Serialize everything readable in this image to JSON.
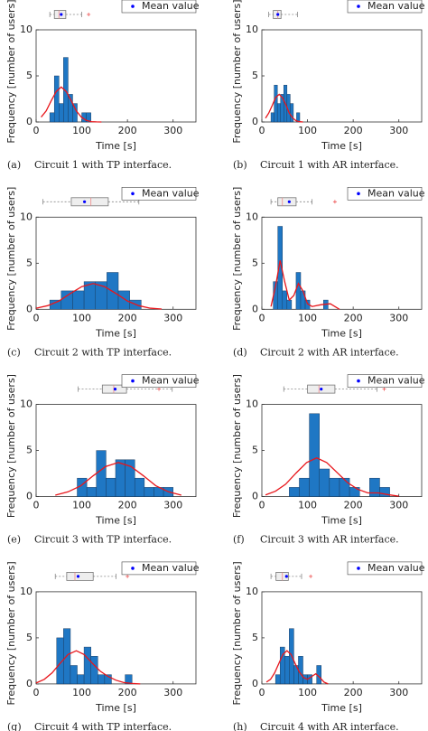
{
  "chart_data": [
    {
      "type": "histogram",
      "bins": [
        30,
        40,
        50,
        60,
        70,
        80,
        90,
        100,
        110,
        120
      ],
      "values": [
        1,
        5,
        2,
        7,
        3,
        2,
        0,
        1,
        1
      ],
      "color": "#1f77c4",
      "edgecolor": "#1a3f66",
      "fit": {
        "color": "#e8161b",
        "x": [
          11,
          22,
          33,
          44,
          55,
          66,
          77,
          88,
          99,
          110,
          121,
          132,
          143
        ],
        "y": [
          0.53,
          1.2,
          2.3,
          3.3,
          3.8,
          3.3,
          2.3,
          1.2,
          0.53,
          0.17,
          0.04,
          0.01,
          0
        ]
      },
      "boxplot": {
        "min": 30,
        "q1": 40,
        "median": 50,
        "q3": 65,
        "max": 100,
        "mean": 55,
        "outliers": [
          115
        ]
      },
      "legend": {
        "label": "Mean value",
        "corner": "upper right",
        "marker_color": "#0000ff"
      },
      "xlabel": "Time [s]",
      "ylabel": "Frequency [number of users]",
      "xlim": [
        0,
        350
      ],
      "ylim": [
        0,
        10
      ],
      "xticks": [
        0,
        100,
        200,
        300
      ],
      "yticks": [
        0,
        5,
        10
      ],
      "caption_label": "(a)",
      "caption": "Circuit 1 with TP interface."
    },
    {
      "type": "histogram",
      "bins": [
        20,
        27,
        34,
        41,
        48,
        55,
        62,
        69,
        76,
        83
      ],
      "values": [
        1,
        4,
        2,
        3,
        4,
        3,
        2,
        0,
        1
      ],
      "color": "#1f77c4",
      "edgecolor": "#1a3f66",
      "fit": {
        "color": "#e8161b",
        "x": [
          8,
          15,
          23,
          30,
          38,
          45,
          53,
          60,
          68,
          75,
          83,
          90
        ],
        "y": [
          0.42,
          0.96,
          1.83,
          2.64,
          3,
          2.64,
          1.83,
          0.96,
          0.42,
          0.13,
          0.03,
          0
        ]
      },
      "boxplot": {
        "min": 15,
        "q1": 25,
        "median": 35,
        "q3": 42,
        "max": 78,
        "mean": 35,
        "outliers": []
      },
      "legend": {
        "label": "Mean value",
        "corner": "upper right",
        "marker_color": "#0000ff"
      },
      "xlabel": "Time [s]",
      "ylabel": "Frequency [number of users]",
      "xlim": [
        0,
        350
      ],
      "ylim": [
        0,
        10
      ],
      "xticks": [
        0,
        100,
        200,
        300
      ],
      "yticks": [
        0,
        5,
        10
      ],
      "caption_label": "(b)",
      "caption": "Circuit 1 with AR interface."
    },
    {
      "type": "histogram",
      "bins": [
        30,
        55,
        80,
        105,
        130,
        155,
        180,
        205,
        230
      ],
      "values": [
        1,
        2,
        2,
        3,
        3,
        4,
        2,
        1
      ],
      "color": "#1f77c4",
      "edgecolor": "#1a3f66",
      "fit": {
        "color": "#e8161b",
        "x": [
          0,
          25,
          50,
          75,
          100,
          125,
          150,
          175,
          200,
          225,
          250,
          275
        ],
        "y": [
          0.12,
          0.39,
          0.9,
          1.71,
          2.46,
          2.8,
          2.46,
          1.71,
          0.9,
          0.39,
          0.12,
          0.03
        ]
      },
      "boxplot": {
        "min": 15,
        "q1": 77,
        "median": 120,
        "q3": 158,
        "max": 225,
        "mean": 106,
        "outliers": []
      },
      "legend": {
        "label": "Mean value",
        "corner": "upper right",
        "marker_color": "#0000ff"
      },
      "xlabel": "Time [s]",
      "ylabel": "Frequency [number of users]",
      "xlim": [
        0,
        350
      ],
      "ylim": [
        0,
        10
      ],
      "xticks": [
        0,
        100,
        200,
        300
      ],
      "yticks": [
        0,
        5,
        10
      ],
      "caption_label": "(c)",
      "caption": "Circuit 2 with TP interface."
    },
    {
      "type": "histogram",
      "bins": [
        25,
        35,
        45,
        55,
        65,
        75,
        85,
        95,
        105,
        115,
        125,
        135,
        145,
        155
      ],
      "values": [
        3,
        9,
        2,
        1,
        0,
        4,
        2,
        1,
        0,
        0,
        0,
        1,
        0
      ],
      "color": "#1f77c4",
      "edgecolor": "#1a3f66",
      "fit": {
        "color": "#e8161b",
        "x": [
          20,
          30,
          40,
          50,
          60,
          70,
          80,
          90,
          100,
          110,
          130,
          150,
          170
        ],
        "y": [
          0.3,
          2.5,
          5.3,
          3,
          1,
          1.5,
          2.8,
          2,
          0.6,
          0.3,
          0.5,
          0.6,
          0
        ]
      },
      "boxplot": {
        "min": 20,
        "q1": 35,
        "median": 45,
        "q3": 75,
        "max": 110,
        "mean": 60,
        "outliers": [
          160
        ]
      },
      "legend": {
        "label": "Mean value",
        "corner": "upper right",
        "marker_color": "#0000ff"
      },
      "xlabel": "Time [s]",
      "ylabel": "Frequency [number of users]",
      "xlim": [
        0,
        350
      ],
      "ylim": [
        0,
        10
      ],
      "xticks": [
        0,
        100,
        200,
        300
      ],
      "yticks": [
        0,
        5,
        10
      ],
      "caption_label": "(d)",
      "caption": "Circuit 2 with AR interface."
    },
    {
      "type": "histogram",
      "bins": [
        90,
        111,
        132,
        153,
        174,
        195,
        216,
        237,
        258,
        279,
        300
      ],
      "values": [
        2,
        1,
        5,
        2,
        4,
        4,
        2,
        1,
        1,
        1
      ],
      "color": "#1f77c4",
      "edgecolor": "#1a3f66",
      "fit": {
        "color": "#e8161b",
        "x": [
          42,
          70,
          98,
          125,
          152,
          180,
          208,
          235,
          262,
          290,
          318
        ],
        "y": [
          0.16,
          0.52,
          1.18,
          2.26,
          3.26,
          3.7,
          3.26,
          2.26,
          1.18,
          0.52,
          0.16
        ]
      },
      "boxplot": {
        "min": 92,
        "q1": 145,
        "median": 170,
        "q3": 198,
        "max": 298,
        "mean": 173,
        "outliers": [
          269
        ]
      },
      "legend": {
        "label": "Mean value",
        "corner": "upper right",
        "marker_color": "#0000ff"
      },
      "xlabel": "Time [s]",
      "ylabel": "Frequency [number of users]",
      "xlim": [
        0,
        350
      ],
      "ylim": [
        0,
        10
      ],
      "xticks": [
        0,
        100,
        200,
        300
      ],
      "yticks": [
        0,
        5,
        10
      ],
      "caption_label": "(e)",
      "caption": "Circuit 3 with TP interface."
    },
    {
      "type": "histogram",
      "bins": [
        60,
        82,
        104,
        126,
        148,
        170,
        192,
        214,
        236,
        258,
        280
      ],
      "values": [
        1,
        2,
        9,
        3,
        2,
        2,
        1,
        0,
        2,
        1
      ],
      "color": "#1f77c4",
      "edgecolor": "#1a3f66",
      "fit": {
        "color": "#e8161b",
        "x": [
          8,
          30,
          52,
          75,
          98,
          120,
          142,
          165,
          188,
          210,
          232,
          255,
          278,
          300
        ],
        "y": [
          0.18,
          0.59,
          1.34,
          2.56,
          3.7,
          4.2,
          3.7,
          2.6,
          1.5,
          0.8,
          0.4,
          0.4,
          0.2,
          0.05
        ]
      },
      "boxplot": {
        "min": 48,
        "q1": 100,
        "median": 125,
        "q3": 160,
        "max": 252,
        "mean": 130,
        "outliers": [
          268
        ]
      },
      "legend": {
        "label": "Mean value",
        "corner": "upper right",
        "marker_color": "#0000ff"
      },
      "xlabel": "Time [s]",
      "ylabel": "Frequency [number of users]",
      "xlim": [
        0,
        350
      ],
      "ylim": [
        0,
        10
      ],
      "xticks": [
        0,
        100,
        200,
        300
      ],
      "yticks": [
        0,
        5,
        10
      ],
      "caption_label": "(f)",
      "caption": "Circuit 3 with AR interface."
    },
    {
      "type": "histogram",
      "bins": [
        30,
        45,
        60,
        75,
        90,
        105,
        120,
        135,
        150,
        165,
        180,
        195,
        210
      ],
      "values": [
        0,
        5,
        6,
        2,
        1,
        4,
        3,
        1,
        1,
        0,
        0,
        1
      ],
      "color": "#1f77c4",
      "edgecolor": "#1a3f66",
      "fit": {
        "color": "#e8161b",
        "x": [
          0,
          18,
          35,
          52,
          70,
          88,
          105,
          122,
          140,
          158,
          175,
          192,
          210,
          228
        ],
        "y": [
          0.1,
          0.5,
          1.2,
          2.2,
          3.2,
          3.6,
          3.2,
          2.3,
          1.4,
          0.8,
          0.4,
          0.15,
          0.05,
          0
        ]
      },
      "boxplot": {
        "min": 42,
        "q1": 67,
        "median": 85,
        "q3": 125,
        "max": 175,
        "mean": 92,
        "outliers": [
          200
        ]
      },
      "legend": {
        "label": "Mean value",
        "corner": "upper right",
        "marker_color": "#0000ff"
      },
      "xlabel": "Time [s]",
      "ylabel": "Frequency [number of users]",
      "xlim": [
        0,
        350
      ],
      "ylim": [
        0,
        10
      ],
      "xticks": [
        0,
        100,
        200,
        300
      ],
      "yticks": [
        0,
        5,
        10
      ],
      "caption_label": "(g)",
      "caption": "Circuit 4 with TP interface."
    },
    {
      "type": "histogram",
      "bins": [
        30,
        40,
        50,
        60,
        70,
        80,
        90,
        100,
        110,
        120,
        130
      ],
      "values": [
        1,
        4,
        3,
        6,
        2,
        3,
        1,
        1,
        0,
        2
      ],
      "color": "#1f77c4",
      "edgecolor": "#1a3f66",
      "fit": {
        "color": "#e8161b",
        "x": [
          10,
          19,
          28,
          37,
          46,
          55,
          64,
          73,
          82,
          91,
          100,
          109,
          118,
          127,
          136,
          145
        ],
        "y": [
          0.2,
          0.5,
          1.2,
          2.2,
          3.2,
          3.6,
          3.2,
          2.2,
          1.3,
          0.7,
          0.5,
          0.8,
          1.1,
          0.7,
          0.2,
          0
        ]
      },
      "boxplot": {
        "min": 20,
        "q1": 31,
        "median": 45,
        "q3": 58,
        "max": 87,
        "mean": 54,
        "outliers": [
          107
        ]
      },
      "legend": {
        "label": "Mean value",
        "corner": "upper right",
        "marker_color": "#0000ff"
      },
      "xlabel": "Time [s]",
      "ylabel": "Frequency [number of users]",
      "xlim": [
        0,
        350
      ],
      "ylim": [
        0,
        10
      ],
      "xticks": [
        0,
        100,
        200,
        300
      ],
      "yticks": [
        0,
        5,
        10
      ],
      "caption_label": "(h)",
      "caption": "Circuit 4 with AR interface."
    }
  ]
}
